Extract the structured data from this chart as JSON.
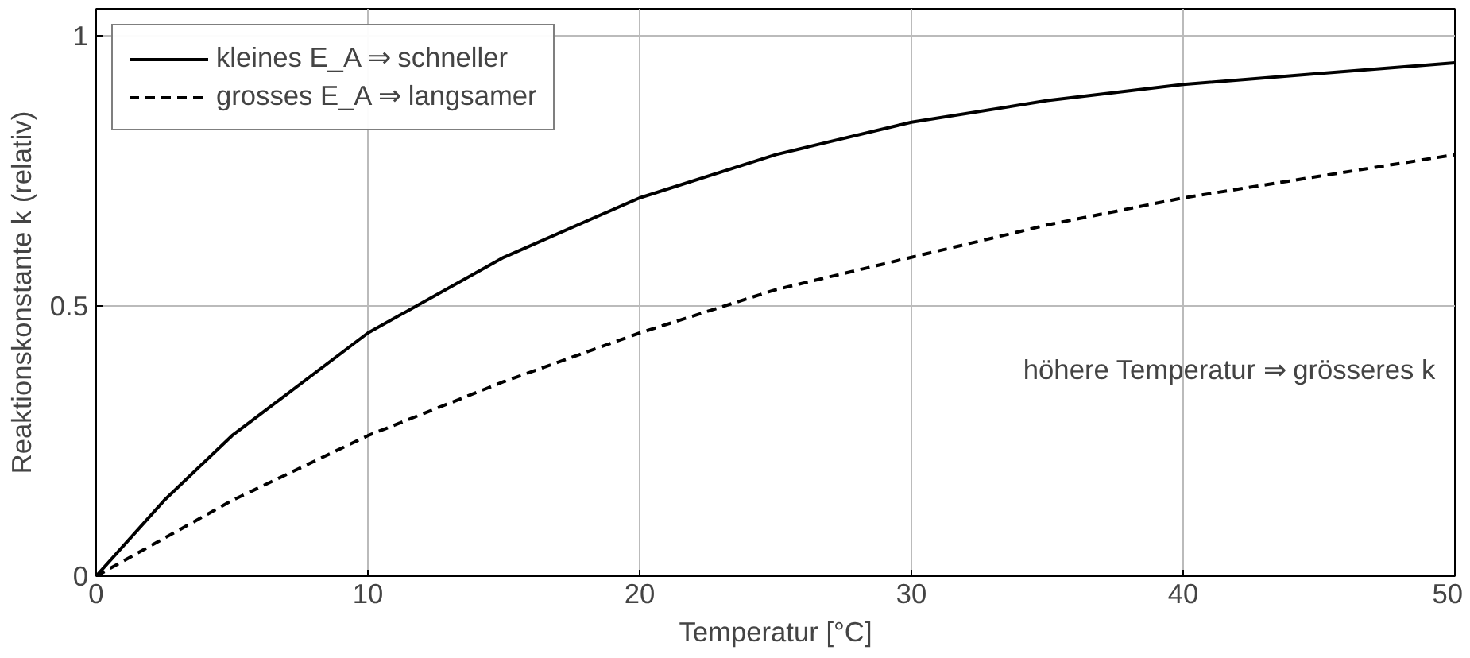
{
  "chart_data": {
    "type": "line",
    "xlabel": "Temperatur [°C]",
    "ylabel": "Reaktionskonstante k (relativ)",
    "x": [
      0,
      2.5,
      5,
      10,
      15,
      20,
      25,
      30,
      35,
      40,
      45,
      50
    ],
    "series": [
      {
        "name": "kleines E_A ⇒ schneller",
        "color": "#000000",
        "line_style": "solid",
        "values": [
          0,
          0.14,
          0.26,
          0.45,
          0.59,
          0.7,
          0.78,
          0.84,
          0.88,
          0.91,
          0.93,
          0.95
        ]
      },
      {
        "name": "grosses E_A ⇒ langsamer",
        "color": "#000000",
        "line_style": "dashed",
        "values": [
          0,
          0.07,
          0.14,
          0.26,
          0.36,
          0.45,
          0.53,
          0.59,
          0.65,
          0.7,
          0.74,
          0.78
        ]
      }
    ],
    "xlim": [
      0,
      50
    ],
    "ylim": [
      0,
      1.05
    ],
    "xticks": [
      0,
      10,
      20,
      30,
      40,
      50
    ],
    "yticks": [
      0,
      0.5,
      1
    ],
    "grid": true,
    "legend": "top left",
    "marker": "none",
    "annotations": [
      "höhere Temperatur ⇒ grösseres k"
    ]
  }
}
